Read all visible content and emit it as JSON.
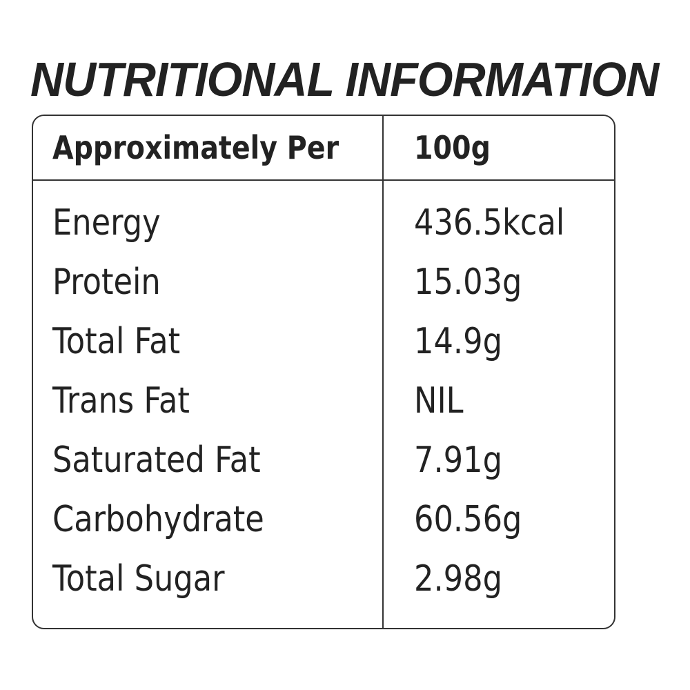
{
  "title": "NUTRITIONAL INFORMATION",
  "table": {
    "header": {
      "label": "Approximately Per",
      "value": "100g"
    },
    "rows": [
      {
        "label": "Energy",
        "value": "436.5kcal"
      },
      {
        "label": "Protein",
        "value": "15.03g"
      },
      {
        "label": "Total Fat",
        "value": "14.9g"
      },
      {
        "label": "Trans Fat",
        "value": "NIL"
      },
      {
        "label": "Saturated Fat",
        "value": "7.91g"
      },
      {
        "label": "Carbohydrate",
        "value": "60.56g"
      },
      {
        "label": "Total Sugar",
        "value": "2.98g"
      }
    ]
  }
}
